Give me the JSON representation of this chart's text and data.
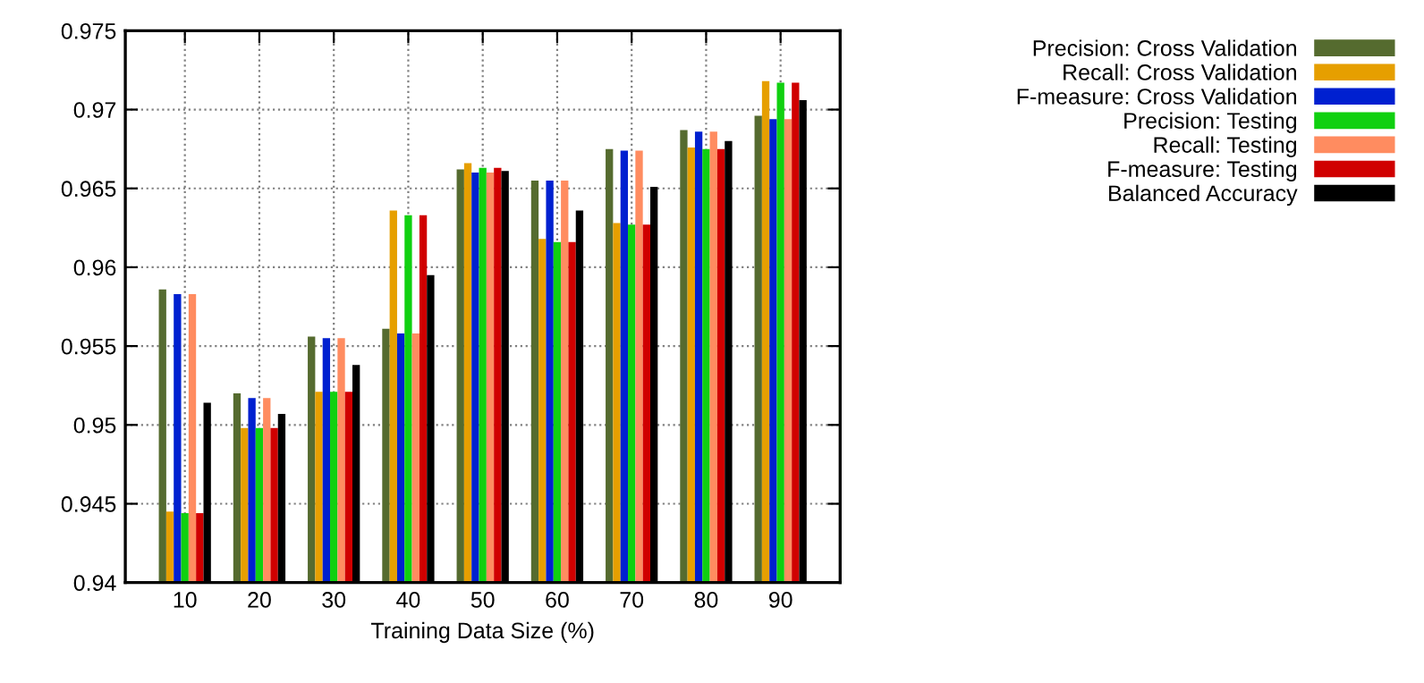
{
  "chart_data": {
    "type": "bar",
    "xlabel": "Training Data Size (%)",
    "categories": [
      "10",
      "20",
      "30",
      "40",
      "50",
      "60",
      "70",
      "80",
      "90"
    ],
    "series": [
      {
        "name": "Precision: Cross Validation",
        "color": "#556b2f",
        "values": [
          0.9586,
          0.952,
          0.9556,
          0.9561,
          0.9662,
          0.9655,
          0.9675,
          0.9687,
          0.9696
        ]
      },
      {
        "name": "Recall: Cross Validation",
        "color": "#e69f00",
        "values": [
          0.9445,
          0.9498,
          0.9521,
          0.9636,
          0.9666,
          0.9618,
          0.9628,
          0.9676,
          0.9718
        ]
      },
      {
        "name": "F-measure: Cross Validation",
        "color": "#0020d0",
        "values": [
          0.9583,
          0.9517,
          0.9555,
          0.9558,
          0.966,
          0.9655,
          0.9674,
          0.9686,
          0.9694
        ]
      },
      {
        "name": "Precision: Testing",
        "color": "#10d010",
        "values": [
          0.9444,
          0.9498,
          0.9521,
          0.9633,
          0.9663,
          0.9616,
          0.9627,
          0.9675,
          0.9717
        ]
      },
      {
        "name": "Recall: Testing",
        "color": "#ff8c60",
        "values": [
          0.9583,
          0.9517,
          0.9555,
          0.9558,
          0.966,
          0.9655,
          0.9674,
          0.9686,
          0.9694
        ]
      },
      {
        "name": "F-measure: Testing",
        "color": "#d00000",
        "values": [
          0.9444,
          0.9498,
          0.9521,
          0.9633,
          0.9663,
          0.9616,
          0.9627,
          0.9675,
          0.9717
        ]
      },
      {
        "name": "Balanced Accuracy",
        "color": "#000000",
        "values": [
          0.9514,
          0.9507,
          0.9538,
          0.9595,
          0.9661,
          0.9636,
          0.9651,
          0.968,
          0.9706
        ]
      }
    ],
    "ylim": [
      0.94,
      0.975
    ],
    "yticks": [
      0.94,
      0.945,
      0.95,
      0.955,
      0.96,
      0.965,
      0.97,
      0.975
    ],
    "grid": true,
    "legend": "top right"
  }
}
